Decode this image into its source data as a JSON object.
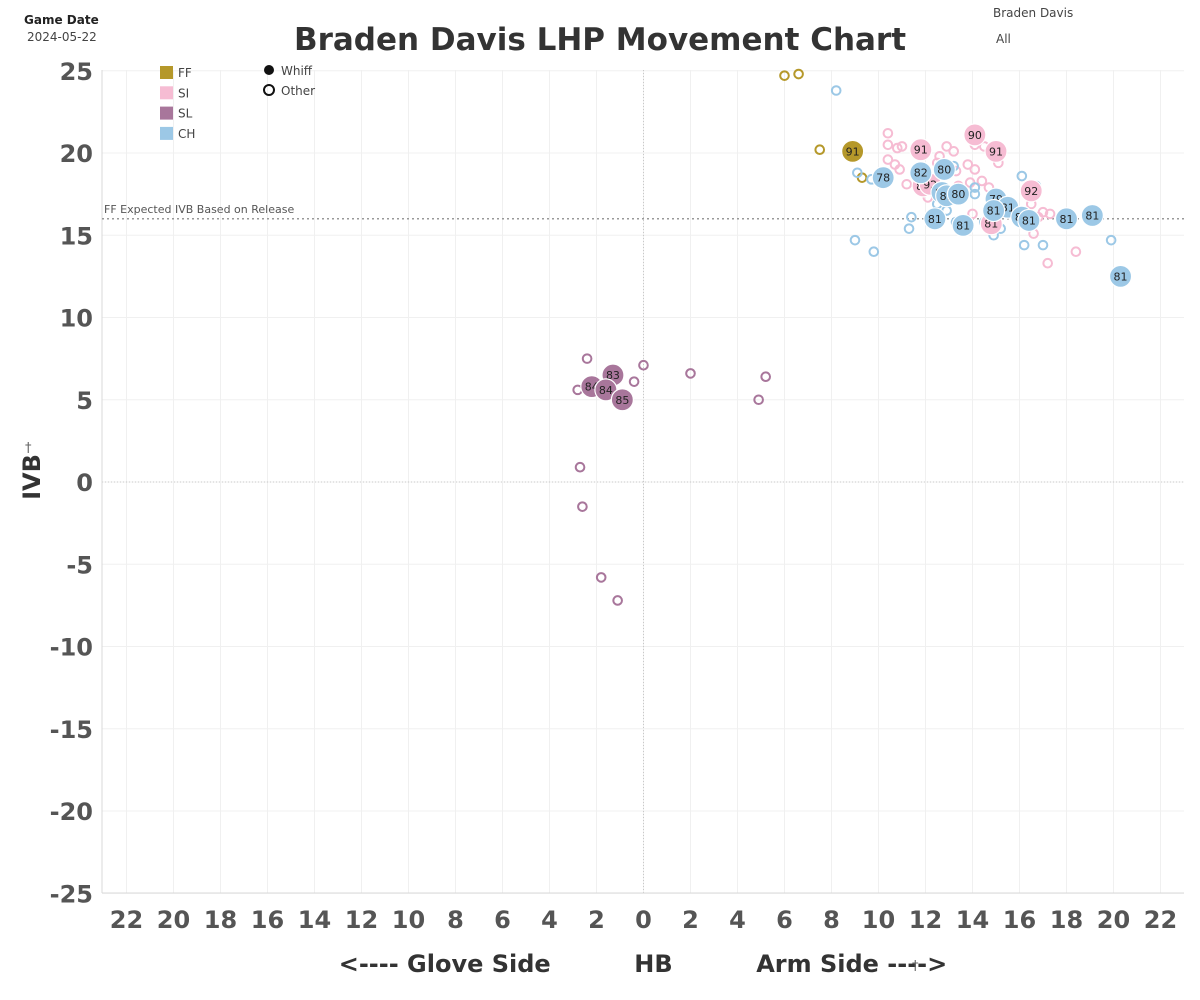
{
  "header": {
    "game_date_label": "Game Date",
    "game_date_value": "2024-05-22",
    "pitcher_name": "Braden Davis",
    "pitch_filter": "All"
  },
  "chart_data": {
    "type": "scatter",
    "title": "Braden Davis LHP Movement Chart",
    "xlabel": "<---- Glove Side          HB          Arm Side ---->",
    "ylabel": "IVB",
    "x_ticks": [
      -22,
      -20,
      -18,
      -16,
      -14,
      -12,
      -10,
      -8,
      -6,
      -4,
      -2,
      0,
      2,
      4,
      6,
      8,
      10,
      12,
      14,
      16,
      18,
      20,
      22
    ],
    "x_tick_labels": [
      "22",
      "20",
      "18",
      "16",
      "14",
      "12",
      "10",
      "8",
      "6",
      "4",
      "2",
      "0",
      "2",
      "4",
      "6",
      "8",
      "10",
      "12",
      "14",
      "16",
      "18",
      "20",
      "22"
    ],
    "y_ticks": [
      25,
      20,
      15,
      10,
      5,
      0,
      -5,
      -10,
      -15,
      -20,
      -25
    ],
    "xlim": [
      -23,
      23
    ],
    "ylim": [
      -25,
      25
    ],
    "grid": true,
    "reference_line": {
      "y": 16,
      "label": "FF Expected IVB Based on Release"
    },
    "legend_pitch_types": [
      {
        "name": "FF",
        "color": "#b5982a"
      },
      {
        "name": "SI",
        "color": "#f6bcd3"
      },
      {
        "name": "SL",
        "color": "#a8769b"
      },
      {
        "name": "CH",
        "color": "#9cc8e6"
      }
    ],
    "legend_outcomes": [
      {
        "name": "Whiff",
        "filled": true
      },
      {
        "name": "Other",
        "filled": false
      }
    ],
    "series": [
      {
        "name": "FF",
        "color": "#b5982a",
        "points": [
          {
            "x": 6.0,
            "y": 24.7,
            "whiff": false
          },
          {
            "x": 6.6,
            "y": 24.8,
            "whiff": false
          },
          {
            "x": 7.5,
            "y": 20.2,
            "whiff": false
          },
          {
            "x": 8.9,
            "y": 20.1,
            "whiff": true,
            "velo": "91"
          },
          {
            "x": 9.3,
            "y": 18.5,
            "whiff": false
          }
        ]
      },
      {
        "name": "SI",
        "color": "#f6bcd3",
        "points": [
          {
            "x": 10.4,
            "y": 21.2,
            "whiff": false
          },
          {
            "x": 10.4,
            "y": 20.5,
            "whiff": false
          },
          {
            "x": 10.8,
            "y": 20.3,
            "whiff": false
          },
          {
            "x": 11.0,
            "y": 20.4,
            "whiff": false
          },
          {
            "x": 10.4,
            "y": 19.6,
            "whiff": false
          },
          {
            "x": 10.7,
            "y": 19.3,
            "whiff": false
          },
          {
            "x": 10.9,
            "y": 19.0,
            "whiff": false
          },
          {
            "x": 11.2,
            "y": 18.1,
            "whiff": false
          },
          {
            "x": 11.8,
            "y": 20.2,
            "whiff": true,
            "velo": "91"
          },
          {
            "x": 12.6,
            "y": 19.8,
            "whiff": false
          },
          {
            "x": 12.9,
            "y": 20.4,
            "whiff": false
          },
          {
            "x": 13.2,
            "y": 20.1,
            "whiff": false
          },
          {
            "x": 12.5,
            "y": 19.4,
            "whiff": false
          },
          {
            "x": 13.3,
            "y": 18.9,
            "whiff": false
          },
          {
            "x": 11.9,
            "y": 18.0,
            "whiff": true,
            "velo": "89"
          },
          {
            "x": 12.2,
            "y": 18.1,
            "whiff": true,
            "velo": "92"
          },
          {
            "x": 12.1,
            "y": 17.3,
            "whiff": false
          },
          {
            "x": 12.8,
            "y": 17.9,
            "whiff": false
          },
          {
            "x": 13.4,
            "y": 18.0,
            "whiff": false
          },
          {
            "x": 13.8,
            "y": 19.3,
            "whiff": false
          },
          {
            "x": 14.1,
            "y": 19.0,
            "whiff": false
          },
          {
            "x": 13.9,
            "y": 18.2,
            "whiff": false
          },
          {
            "x": 14.1,
            "y": 20.5,
            "whiff": false
          },
          {
            "x": 14.1,
            "y": 21.1,
            "whiff": true,
            "velo": "90"
          },
          {
            "x": 14.5,
            "y": 20.4,
            "whiff": false
          },
          {
            "x": 15.0,
            "y": 20.1,
            "whiff": true,
            "velo": "91"
          },
          {
            "x": 15.1,
            "y": 19.4,
            "whiff": false
          },
          {
            "x": 14.4,
            "y": 18.3,
            "whiff": false
          },
          {
            "x": 14.7,
            "y": 17.9,
            "whiff": false
          },
          {
            "x": 16.5,
            "y": 17.7,
            "whiff": true,
            "velo": "92"
          },
          {
            "x": 14.8,
            "y": 15.7,
            "whiff": true,
            "velo": "81"
          },
          {
            "x": 14.0,
            "y": 16.3,
            "whiff": false
          },
          {
            "x": 15.6,
            "y": 16.4,
            "whiff": false
          },
          {
            "x": 16.5,
            "y": 16.9,
            "whiff": false
          },
          {
            "x": 16.8,
            "y": 16.1,
            "whiff": false
          },
          {
            "x": 17.0,
            "y": 16.4,
            "whiff": false
          },
          {
            "x": 17.3,
            "y": 16.3,
            "whiff": false
          },
          {
            "x": 16.6,
            "y": 15.1,
            "whiff": false
          },
          {
            "x": 17.2,
            "y": 13.3,
            "whiff": false
          },
          {
            "x": 18.4,
            "y": 14.0,
            "whiff": false
          }
        ]
      },
      {
        "name": "SL",
        "color": "#a8769b",
        "points": [
          {
            "x": -2.4,
            "y": 7.5,
            "whiff": false
          },
          {
            "x": -1.3,
            "y": 6.5,
            "whiff": true,
            "velo": "83"
          },
          {
            "x": 0.0,
            "y": 7.1,
            "whiff": false
          },
          {
            "x": -0.4,
            "y": 6.1,
            "whiff": false
          },
          {
            "x": -2.8,
            "y": 5.6,
            "whiff": false
          },
          {
            "x": -2.2,
            "y": 5.8,
            "whiff": true,
            "velo": "84"
          },
          {
            "x": -1.6,
            "y": 5.6,
            "whiff": true,
            "velo": "84"
          },
          {
            "x": -0.9,
            "y": 5.0,
            "whiff": true,
            "velo": "85"
          },
          {
            "x": 2.0,
            "y": 6.6,
            "whiff": false
          },
          {
            "x": 5.2,
            "y": 6.4,
            "whiff": false
          },
          {
            "x": 4.9,
            "y": 5.0,
            "whiff": false
          },
          {
            "x": -2.7,
            "y": 0.9,
            "whiff": false
          },
          {
            "x": -2.6,
            "y": -1.5,
            "whiff": false
          },
          {
            "x": -1.8,
            "y": -5.8,
            "whiff": false
          },
          {
            "x": -1.1,
            "y": -7.2,
            "whiff": false
          }
        ]
      },
      {
        "name": "CH",
        "color": "#9cc8e6",
        "points": [
          {
            "x": 8.2,
            "y": 23.8,
            "whiff": false
          },
          {
            "x": 9.1,
            "y": 18.8,
            "whiff": false
          },
          {
            "x": 9.7,
            "y": 18.4,
            "whiff": false
          },
          {
            "x": 10.2,
            "y": 18.5,
            "whiff": true,
            "velo": "78"
          },
          {
            "x": 11.8,
            "y": 18.8,
            "whiff": true,
            "velo": "82"
          },
          {
            "x": 12.8,
            "y": 19.0,
            "whiff": true,
            "velo": "80"
          },
          {
            "x": 13.2,
            "y": 19.2,
            "whiff": false
          },
          {
            "x": 12.6,
            "y": 17.5,
            "whiff": false
          },
          {
            "x": 12.7,
            "y": 17.6,
            "whiff": true,
            "velo": "81"
          },
          {
            "x": 12.9,
            "y": 17.4,
            "whiff": true,
            "velo": "81"
          },
          {
            "x": 13.4,
            "y": 17.5,
            "whiff": true,
            "velo": "80"
          },
          {
            "x": 14.1,
            "y": 17.5,
            "whiff": false
          },
          {
            "x": 14.1,
            "y": 17.9,
            "whiff": false
          },
          {
            "x": 12.4,
            "y": 16.0,
            "whiff": true,
            "velo": "81"
          },
          {
            "x": 12.9,
            "y": 16.5,
            "whiff": false
          },
          {
            "x": 12.5,
            "y": 16.9,
            "whiff": false
          },
          {
            "x": 11.4,
            "y": 16.1,
            "whiff": false
          },
          {
            "x": 11.3,
            "y": 15.4,
            "whiff": false
          },
          {
            "x": 13.3,
            "y": 15.8,
            "whiff": false
          },
          {
            "x": 13.6,
            "y": 15.6,
            "whiff": true,
            "velo": "81"
          },
          {
            "x": 15.0,
            "y": 17.2,
            "whiff": true,
            "velo": "79"
          },
          {
            "x": 15.5,
            "y": 16.7,
            "whiff": true,
            "velo": "81"
          },
          {
            "x": 14.9,
            "y": 16.5,
            "whiff": true,
            "velo": "81"
          },
          {
            "x": 16.1,
            "y": 16.1,
            "whiff": true,
            "velo": "81"
          },
          {
            "x": 16.4,
            "y": 15.9,
            "whiff": true,
            "velo": "81"
          },
          {
            "x": 15.2,
            "y": 15.4,
            "whiff": false
          },
          {
            "x": 14.9,
            "y": 15.0,
            "whiff": false
          },
          {
            "x": 14.5,
            "y": 15.8,
            "whiff": false
          },
          {
            "x": 16.1,
            "y": 18.6,
            "whiff": false
          },
          {
            "x": 16.7,
            "y": 18.0,
            "whiff": false
          },
          {
            "x": 18.0,
            "y": 16.0,
            "whiff": true,
            "velo": "81"
          },
          {
            "x": 19.1,
            "y": 16.2,
            "whiff": true,
            "velo": "81"
          },
          {
            "x": 17.0,
            "y": 14.4,
            "whiff": false
          },
          {
            "x": 16.2,
            "y": 14.4,
            "whiff": false
          },
          {
            "x": 19.9,
            "y": 14.7,
            "whiff": false
          },
          {
            "x": 20.3,
            "y": 12.5,
            "whiff": true,
            "velo": "81"
          },
          {
            "x": 9.0,
            "y": 14.7,
            "whiff": false
          },
          {
            "x": 9.8,
            "y": 14.0,
            "whiff": false
          }
        ]
      }
    ]
  }
}
